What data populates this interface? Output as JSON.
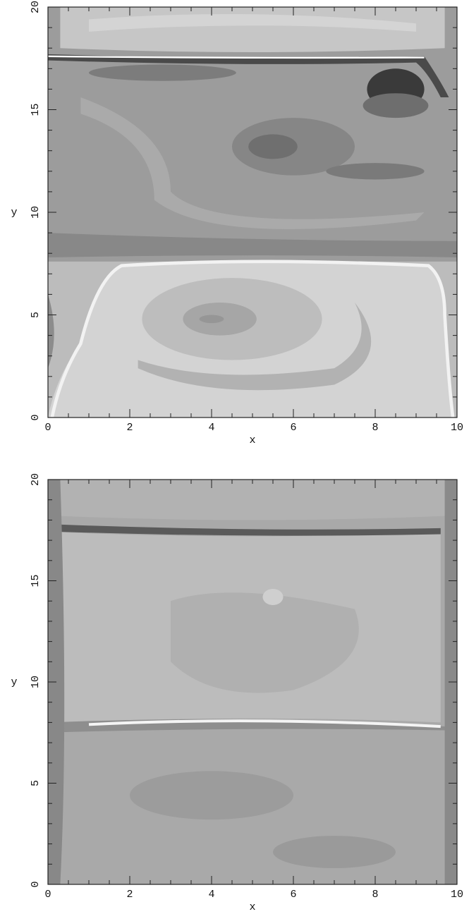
{
  "chart_data": [
    {
      "type": "contour",
      "xlabel": "x",
      "ylabel": "y",
      "xlim": [
        0,
        10
      ],
      "ylim": [
        0,
        20
      ],
      "xticks": [
        0,
        2,
        4,
        6,
        8,
        10
      ],
      "yticks": [
        0,
        5,
        10,
        15,
        20
      ]
    },
    {
      "type": "contour",
      "xlabel": "x",
      "ylabel": "y",
      "xlim": [
        0,
        10
      ],
      "ylim": [
        0,
        20
      ],
      "xticks": [
        0,
        2,
        4,
        6,
        8,
        10
      ],
      "yticks": [
        0,
        5,
        10,
        15,
        20
      ]
    }
  ]
}
